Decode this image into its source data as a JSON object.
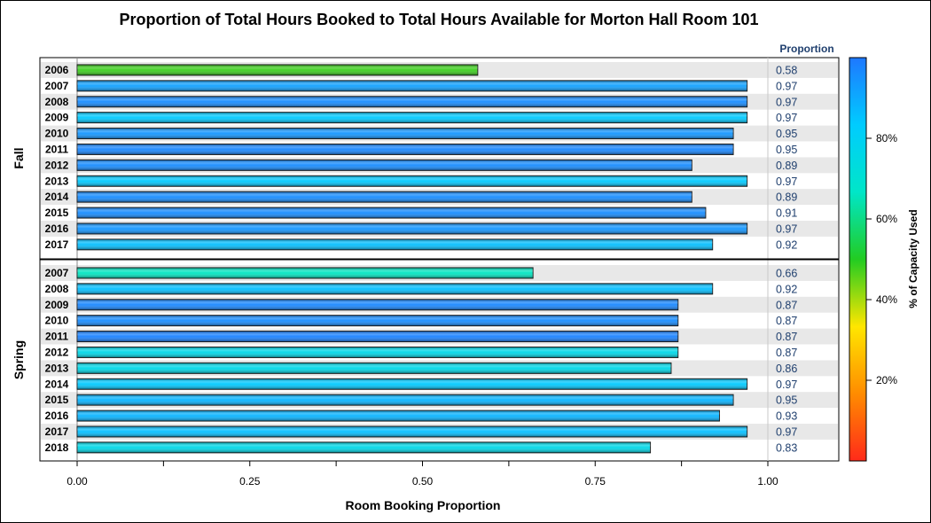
{
  "chart_data": {
    "type": "bar",
    "orientation": "horizontal",
    "title": "Proportion of Total Hours Booked to Total Hours Available for Morton Hall Room 101",
    "xlabel": "Room Booking Proportion",
    "xlim": [
      0,
      1.1
    ],
    "x_ticks": [
      "0.00",
      "0.25",
      "0.50",
      "0.75",
      "1.00"
    ],
    "value_column_header": "Proportion",
    "color_legend": {
      "label": "% of Capacity Used",
      "ticks": [
        "20%",
        "40%",
        "60%",
        "80%"
      ],
      "colors": [
        "#ff2a1a",
        "#ff8c00",
        "#ffe600",
        "#22cc22",
        "#00e6c8",
        "#00ccff",
        "#1e78ff"
      ]
    },
    "panels": [
      {
        "name": "Fall",
        "categories": [
          "2006",
          "2007",
          "2008",
          "2009",
          "2010",
          "2011",
          "2012",
          "2013",
          "2014",
          "2015",
          "2016",
          "2017"
        ],
        "values": [
          0.58,
          0.97,
          0.97,
          0.97,
          0.95,
          0.95,
          0.89,
          0.97,
          0.89,
          0.91,
          0.97,
          0.92
        ],
        "labels": [
          "0.58",
          "0.97",
          "0.97",
          "0.97",
          "0.95",
          "0.95",
          "0.89",
          "0.97",
          "0.89",
          "0.91",
          "0.97",
          "0.92"
        ],
        "capacity": [
          48,
          92,
          96,
          84,
          94,
          97,
          96,
          84,
          96,
          96,
          94,
          86
        ]
      },
      {
        "name": "Spring",
        "categories": [
          "2007",
          "2008",
          "2009",
          "2010",
          "2011",
          "2012",
          "2013",
          "2014",
          "2015",
          "2016",
          "2017",
          "2018"
        ],
        "values": [
          0.66,
          0.92,
          0.87,
          0.87,
          0.87,
          0.87,
          0.86,
          0.97,
          0.95,
          0.93,
          0.97,
          0.83
        ],
        "labels": [
          "0.66",
          "0.92",
          "0.87",
          "0.87",
          "0.87",
          "0.87",
          "0.86",
          "0.97",
          "0.95",
          "0.93",
          "0.97",
          "0.83"
        ],
        "capacity": [
          66,
          86,
          97,
          96,
          98,
          76,
          76,
          84,
          88,
          88,
          86,
          76
        ]
      }
    ]
  }
}
